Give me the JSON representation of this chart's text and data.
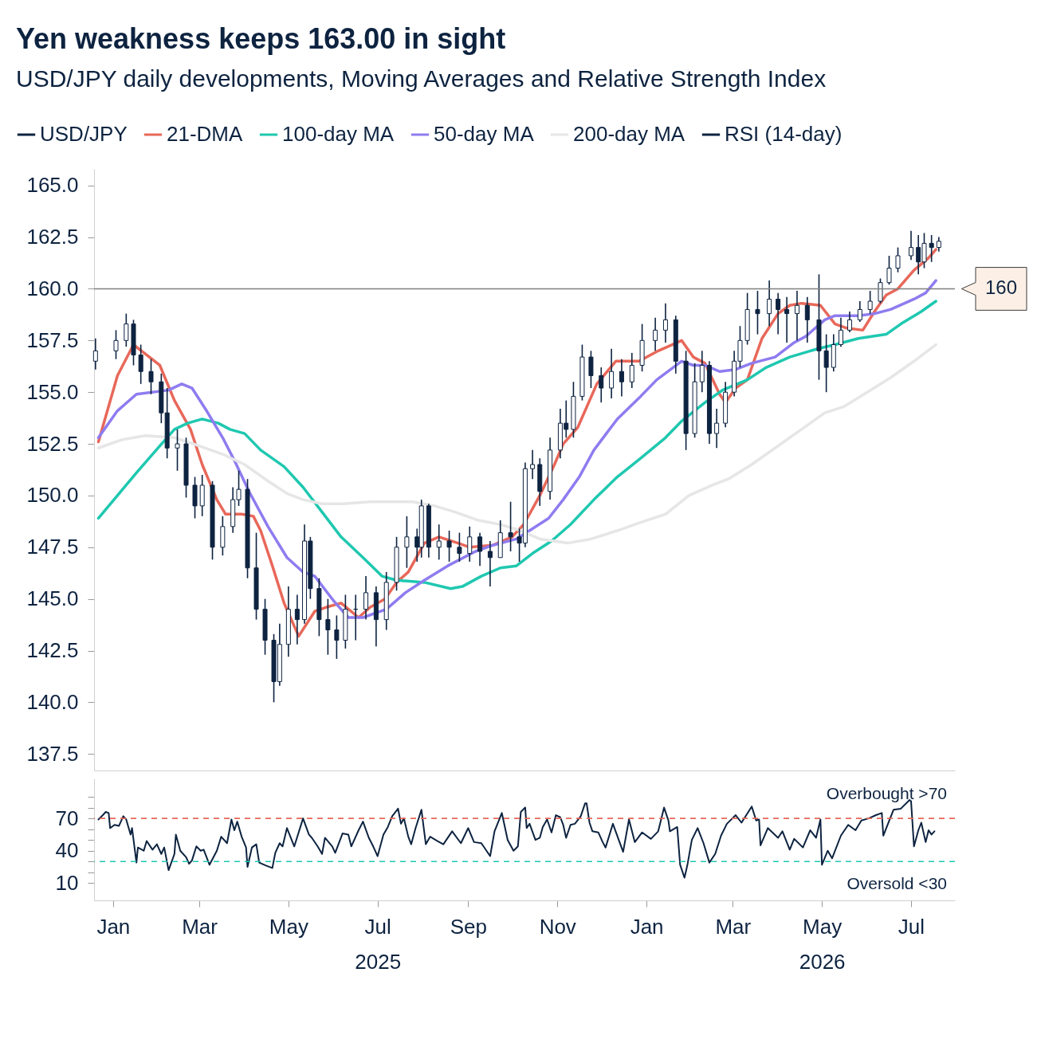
{
  "chart_data": [
    {
      "type": "candlestick",
      "title": "Yen weakness keeps 163.00 in sight",
      "subtitle": "USD/JPY daily developments, Moving Averages and Relative Strength Index",
      "xlim": [
        "2024-12-19",
        "2026-07-31"
      ],
      "ylim": [
        136.7,
        165.8
      ],
      "yticks": [
        137.5,
        {
          "value": 140,
          "label": "140.0"
        },
        142.5,
        {
          "value": 145,
          "label": "145.0"
        },
        147.5,
        {
          "value": 150,
          "label": "150.0"
        },
        152.5,
        {
          "value": 155,
          "label": "155.0"
        },
        157.5,
        {
          "value": 160,
          "label": "160.0"
        },
        162.5,
        {
          "value": 165,
          "label": "165.0"
        }
      ],
      "tick_labels": "y",
      "legend": "top",
      "ref_lines": [
        {
          "axis": "y",
          "value": 160,
          "label": "160",
          "color": "#808080",
          "line_style": "solid"
        }
      ],
      "series": [
        {
          "name": "USD/JPY",
          "type": "candlestick",
          "color": "#0d2340",
          "x": [
            "2024-12-20",
            "2025-01-03",
            "2025-01-10",
            "2025-01-15",
            "2025-01-20",
            "2025-01-27",
            "2025-02-03",
            "2025-02-07",
            "2025-02-14",
            "2025-02-20",
            "2025-02-26",
            "2025-03-03",
            "2025-03-10",
            "2025-03-17",
            "2025-03-24",
            "2025-03-28",
            "2025-04-03",
            "2025-04-09",
            "2025-04-15",
            "2025-04-21",
            "2025-04-25",
            "2025-05-01",
            "2025-05-07",
            "2025-05-12",
            "2025-05-16",
            "2025-05-22",
            "2025-05-28",
            "2025-06-03",
            "2025-06-09",
            "2025-06-16",
            "2025-06-23",
            "2025-06-30",
            "2025-07-07",
            "2025-07-14",
            "2025-07-21",
            "2025-07-28",
            "2025-07-31",
            "2025-08-05",
            "2025-08-12",
            "2025-08-19",
            "2025-08-26",
            "2025-09-02",
            "2025-09-09",
            "2025-09-16",
            "2025-09-23",
            "2025-09-30",
            "2025-10-06",
            "2025-10-10",
            "2025-10-15",
            "2025-10-20",
            "2025-10-27",
            "2025-11-03",
            "2025-11-07",
            "2025-11-12",
            "2025-11-18",
            "2025-11-24",
            "2025-12-01",
            "2025-12-08",
            "2025-12-15",
            "2025-12-22",
            "2025-12-29",
            "2026-01-07",
            "2026-01-14",
            "2026-01-21",
            "2026-01-28",
            "2026-02-03",
            "2026-02-08",
            "2026-02-13",
            "2026-02-18",
            "2026-02-24",
            "2026-03-02",
            "2026-03-06",
            "2026-03-11",
            "2026-03-18",
            "2026-03-26",
            "2026-04-01",
            "2026-04-07",
            "2026-04-14",
            "2026-04-21",
            "2026-04-29",
            "2026-05-04",
            "2026-05-09",
            "2026-05-14",
            "2026-05-20",
            "2026-05-27",
            "2026-06-03",
            "2026-06-10",
            "2026-06-16",
            "2026-06-22",
            "2026-07-01",
            "2026-07-06",
            "2026-07-10",
            "2026-07-15",
            "2026-07-20"
          ],
          "ohlc": [
            [
              156.5,
              157.6,
              156.1,
              157.0
            ],
            [
              157.0,
              158.0,
              156.6,
              157.5
            ],
            [
              157.5,
              158.8,
              157.2,
              158.3
            ],
            [
              158.3,
              158.5,
              156.3,
              156.8
            ],
            [
              156.8,
              157.3,
              155.4,
              156.0
            ],
            [
              156.0,
              156.6,
              154.9,
              155.5
            ],
            [
              155.5,
              155.9,
              153.5,
              154.0
            ],
            [
              154.0,
              155.2,
              151.8,
              152.3
            ],
            [
              152.3,
              153.2,
              151.2,
              152.5
            ],
            [
              152.5,
              152.8,
              149.9,
              150.5
            ],
            [
              150.5,
              150.9,
              148.9,
              149.5
            ],
            [
              149.5,
              151.0,
              149.0,
              150.5
            ],
            [
              150.5,
              150.7,
              146.9,
              147.5
            ],
            [
              147.5,
              149.0,
              147.1,
              148.5
            ],
            [
              148.5,
              150.4,
              148.2,
              149.8
            ],
            [
              149.8,
              151.2,
              149.5,
              150.3
            ],
            [
              150.3,
              150.8,
              146.0,
              146.5
            ],
            [
              146.5,
              148.2,
              144.0,
              144.5
            ],
            [
              144.5,
              145.0,
              142.3,
              143.0
            ],
            [
              143.0,
              143.3,
              140.0,
              141.0
            ],
            [
              141.0,
              143.8,
              140.8,
              142.8
            ],
            [
              142.8,
              145.6,
              142.2,
              144.5
            ],
            [
              144.5,
              145.2,
              142.8,
              144.0
            ],
            [
              144.0,
              148.6,
              143.8,
              147.8
            ],
            [
              147.8,
              148.0,
              145.0,
              145.5
            ],
            [
              145.5,
              146.0,
              143.2,
              144.0
            ],
            [
              144.0,
              145.0,
              142.3,
              143.5
            ],
            [
              143.5,
              144.2,
              142.1,
              143.0
            ],
            [
              143.0,
              145.2,
              142.6,
              144.5
            ],
            [
              144.5,
              145.2,
              143.0,
              144.5
            ],
            [
              144.5,
              146.1,
              144.0,
              145.3
            ],
            [
              145.3,
              145.6,
              142.7,
              144.0
            ],
            [
              144.0,
              146.3,
              143.5,
              145.8
            ],
            [
              145.8,
              148.0,
              145.4,
              147.5
            ],
            [
              147.5,
              149.0,
              146.5,
              148.0
            ],
            [
              148.0,
              148.4,
              146.8,
              147.5
            ],
            [
              147.5,
              149.8,
              147.0,
              149.5
            ],
            [
              149.5,
              149.6,
              147.0,
              147.5
            ],
            [
              147.5,
              148.6,
              146.9,
              147.8
            ],
            [
              147.8,
              148.3,
              146.8,
              147.5
            ],
            [
              147.5,
              148.2,
              146.8,
              147.2
            ],
            [
              147.2,
              148.5,
              146.8,
              148.0
            ],
            [
              148.0,
              148.2,
              146.6,
              147.3
            ],
            [
              147.3,
              147.8,
              145.6,
              147.0
            ],
            [
              147.0,
              148.8,
              147.0,
              148.2
            ],
            [
              148.2,
              149.7,
              147.3,
              148.0
            ],
            [
              148.0,
              148.4,
              146.8,
              147.7
            ],
            [
              147.7,
              151.6,
              147.5,
              151.3
            ],
            [
              151.3,
              152.2,
              150.8,
              151.5
            ],
            [
              151.5,
              151.8,
              149.5,
              150.2
            ],
            [
              150.2,
              152.8,
              149.8,
              152.2
            ],
            [
              152.2,
              154.2,
              151.8,
              153.5
            ],
            [
              153.5,
              154.6,
              152.8,
              153.2
            ],
            [
              153.2,
              155.5,
              152.8,
              154.8
            ],
            [
              154.8,
              157.3,
              154.6,
              156.7
            ],
            [
              156.7,
              157.0,
              155.2,
              155.8
            ],
            [
              155.8,
              156.2,
              154.5,
              155.2
            ],
            [
              155.2,
              157.1,
              154.7,
              156.0
            ],
            [
              156.0,
              156.6,
              154.8,
              155.5
            ],
            [
              155.5,
              156.9,
              155.2,
              156.3
            ],
            [
              156.3,
              158.3,
              156.0,
              157.5
            ],
            [
              157.5,
              158.6,
              157.0,
              158.0
            ],
            [
              158.0,
              159.3,
              157.4,
              158.5
            ],
            [
              158.5,
              158.7,
              155.9,
              156.5
            ],
            [
              156.5,
              157.0,
              152.2,
              153.0
            ],
            [
              153.0,
              156.4,
              152.8,
              155.5
            ],
            [
              155.5,
              157.0,
              155.0,
              156.3
            ],
            [
              156.3,
              156.5,
              152.5,
              153.0
            ],
            [
              153.0,
              154.2,
              152.3,
              153.5
            ],
            [
              153.5,
              155.5,
              153.3,
              155.0
            ],
            [
              155.0,
              157.0,
              154.8,
              156.5
            ],
            [
              156.5,
              158.2,
              156.2,
              157.5
            ],
            [
              157.5,
              159.8,
              157.3,
              159.0
            ],
            [
              159.0,
              159.9,
              157.8,
              158.8
            ],
            [
              158.8,
              160.4,
              158.2,
              159.5
            ],
            [
              159.5,
              159.8,
              157.8,
              159.0
            ],
            [
              159.0,
              159.6,
              157.4,
              158.8
            ],
            [
              158.8,
              159.9,
              157.5,
              159.2
            ],
            [
              159.2,
              159.6,
              157.4,
              158.5
            ],
            [
              158.5,
              160.7,
              155.6,
              157.0
            ],
            [
              157.0,
              157.8,
              155.0,
              156.2
            ],
            [
              156.2,
              157.8,
              156.0,
              157.3
            ],
            [
              157.3,
              158.6,
              157.2,
              158.0
            ],
            [
              158.0,
              158.9,
              157.9,
              158.5
            ],
            [
              158.5,
              159.4,
              158.4,
              159.0
            ],
            [
              159.0,
              159.9,
              158.8,
              159.4
            ],
            [
              159.4,
              160.5,
              159.3,
              160.3
            ],
            [
              160.3,
              161.6,
              160.2,
              161.0
            ],
            [
              161.0,
              162.0,
              160.8,
              161.6
            ],
            [
              161.6,
              162.8,
              161.4,
              162.0
            ],
            [
              162.0,
              162.6,
              160.7,
              161.3
            ],
            [
              161.3,
              162.7,
              161.0,
              162.2
            ],
            [
              162.2,
              162.6,
              161.3,
              162.0
            ],
            [
              162.0,
              162.5,
              161.8,
              162.3
            ]
          ]
        },
        {
          "name": "21-DMA",
          "type": "line",
          "color": "#e8685a",
          "x": [
            "2024-12-22",
            "2025-01-04",
            "2025-01-15",
            "2025-02-02",
            "2025-02-12",
            "2025-02-23",
            "2025-03-03",
            "2025-03-13",
            "2025-03-19",
            "2025-03-30",
            "2025-04-07",
            "2025-04-12",
            "2025-04-20",
            "2025-04-28",
            "2025-05-08",
            "2025-05-19",
            "2025-05-27",
            "2025-06-06",
            "2025-06-18",
            "2025-06-26",
            "2025-07-06",
            "2025-07-14",
            "2025-07-22",
            "2025-08-02",
            "2025-08-12",
            "2025-08-25",
            "2025-09-02",
            "2025-09-18",
            "2025-10-01",
            "2025-10-09",
            "2025-10-20",
            "2025-10-30",
            "2025-11-05",
            "2025-11-15",
            "2025-11-28",
            "2025-12-11",
            "2025-12-27",
            "2026-01-09",
            "2026-01-25",
            "2026-02-02",
            "2026-02-10",
            "2026-02-20",
            "2026-02-24",
            "2026-03-03",
            "2026-03-11",
            "2026-03-21",
            "2026-04-01",
            "2026-04-09",
            "2026-04-17",
            "2026-04-30",
            "2026-05-10",
            "2026-05-18",
            "2026-05-29",
            "2026-06-06",
            "2026-06-14",
            "2026-06-22",
            "2026-07-03",
            "2026-07-13",
            "2026-07-18"
          ],
          "values": [
            152.6,
            155.8,
            157.3,
            156.3,
            154.6,
            153.2,
            151.5,
            149.8,
            149.1,
            149.1,
            149.0,
            148.3,
            146.6,
            144.8,
            143.2,
            144.4,
            144.6,
            144.8,
            144.1,
            144.6,
            145.0,
            145.8,
            146.3,
            147.7,
            148.0,
            147.7,
            147.5,
            147.6,
            148.0,
            148.6,
            150.0,
            151.5,
            152.5,
            153.3,
            155.4,
            156.5,
            156.5,
            157.0,
            157.5,
            156.7,
            156.4,
            154.9,
            154.5,
            155.2,
            155.6,
            157.6,
            158.8,
            159.2,
            159.3,
            159.2,
            158.3,
            158.1,
            158.0,
            158.9,
            159.7,
            160.0,
            160.9,
            161.5,
            161.9
          ]
        },
        {
          "name": "100-day MA",
          "type": "line",
          "color": "#1fc8b0",
          "x": [
            "2024-12-22",
            "2025-01-04",
            "2025-01-17",
            "2025-02-02",
            "2025-02-12",
            "2025-02-21",
            "2025-03-03",
            "2025-03-14",
            "2025-03-22",
            "2025-04-01",
            "2025-04-12",
            "2025-04-28",
            "2025-05-11",
            "2025-05-24",
            "2025-06-06",
            "2025-06-21",
            "2025-07-04",
            "2025-07-14",
            "2025-08-02",
            "2025-08-20",
            "2025-08-28",
            "2025-09-10",
            "2025-09-23",
            "2025-10-04",
            "2025-10-15",
            "2025-10-28",
            "2025-11-10",
            "2025-11-26",
            "2025-12-12",
            "2025-12-28",
            "2026-01-14",
            "2026-01-25",
            "2026-02-10",
            "2026-02-22",
            "2026-03-11",
            "2026-03-24",
            "2026-04-09",
            "2026-04-28",
            "2026-05-10",
            "2026-05-26",
            "2026-06-14",
            "2026-06-24",
            "2026-07-08",
            "2026-07-18"
          ],
          "values": [
            148.9,
            150.0,
            151.1,
            152.4,
            153.2,
            153.5,
            153.7,
            153.5,
            153.2,
            153.0,
            152.2,
            151.4,
            150.4,
            149.2,
            148.0,
            147.0,
            146.1,
            145.9,
            145.8,
            145.5,
            145.6,
            146.1,
            146.5,
            146.6,
            147.2,
            147.8,
            148.6,
            149.8,
            150.9,
            151.8,
            152.8,
            153.6,
            154.5,
            155.1,
            155.6,
            156.2,
            156.7,
            157.1,
            157.3,
            157.6,
            157.8,
            158.3,
            158.9,
            159.4
          ]
        },
        {
          "name": "50-day MA",
          "type": "line",
          "color": "#8e7cf0",
          "x": [
            "2024-12-22",
            "2025-01-04",
            "2025-01-17",
            "2025-02-08",
            "2025-02-17",
            "2025-02-24",
            "2025-03-06",
            "2025-03-17",
            "2025-03-25",
            "2025-04-04",
            "2025-04-17",
            "2025-04-30",
            "2025-05-11",
            "2025-05-19",
            "2025-06-01",
            "2025-06-11",
            "2025-06-21",
            "2025-07-07",
            "2025-07-20",
            "2025-08-02",
            "2025-08-18",
            "2025-09-06",
            "2025-09-18",
            "2025-10-04",
            "2025-10-15",
            "2025-10-26",
            "2025-11-05",
            "2025-11-16",
            "2025-11-26",
            "2025-12-12",
            "2025-12-28",
            "2026-01-08",
            "2026-01-25",
            "2026-02-02",
            "2026-02-10",
            "2026-02-20",
            "2026-03-03",
            "2026-03-14",
            "2026-03-30",
            "2026-04-12",
            "2026-04-20",
            "2026-05-03",
            "2026-05-10",
            "2026-05-26",
            "2026-06-06",
            "2026-06-17",
            "2026-07-03",
            "2026-07-11",
            "2026-07-18"
          ],
          "values": [
            152.8,
            154.1,
            154.9,
            155.1,
            155.4,
            155.2,
            154.1,
            152.8,
            151.7,
            150.2,
            148.5,
            147.0,
            146.3,
            146.1,
            144.9,
            144.1,
            144.1,
            144.5,
            145.3,
            145.9,
            146.6,
            147.3,
            147.6,
            147.9,
            148.4,
            148.9,
            149.8,
            150.9,
            152.2,
            153.7,
            154.8,
            155.6,
            156.5,
            156.3,
            156.3,
            156.0,
            156.1,
            156.4,
            156.7,
            157.4,
            157.7,
            158.5,
            158.7,
            158.7,
            158.8,
            159.0,
            159.5,
            159.8,
            160.4
          ]
        },
        {
          "name": "200-day MA",
          "type": "line",
          "color": "#e6e6e6",
          "x": [
            "2024-12-22",
            "2025-01-07",
            "2025-01-23",
            "2025-02-12",
            "2025-03-01",
            "2025-03-17",
            "2025-04-01",
            "2025-04-17",
            "2025-04-30",
            "2025-05-11",
            "2025-05-24",
            "2025-06-08",
            "2025-06-26",
            "2025-07-11",
            "2025-07-25",
            "2025-08-09",
            "2025-08-23",
            "2025-09-08",
            "2025-09-23",
            "2025-10-07",
            "2025-10-20",
            "2025-11-08",
            "2025-11-24",
            "2025-12-12",
            "2025-12-28",
            "2026-01-14",
            "2026-01-30",
            "2026-02-15",
            "2026-02-26",
            "2026-03-14",
            "2026-03-30",
            "2026-04-17",
            "2026-05-03",
            "2026-05-16",
            "2026-06-01",
            "2026-06-17",
            "2026-07-03",
            "2026-07-18"
          ],
          "values": [
            152.3,
            152.7,
            152.9,
            152.8,
            152.4,
            152.0,
            151.5,
            150.7,
            150.1,
            149.8,
            149.6,
            149.6,
            149.7,
            149.7,
            149.7,
            149.5,
            149.2,
            148.8,
            148.6,
            148.3,
            147.9,
            147.7,
            147.9,
            148.3,
            148.7,
            149.1,
            150.0,
            150.5,
            150.8,
            151.5,
            152.3,
            153.2,
            154.0,
            154.3,
            155.0,
            155.7,
            156.5,
            157.3
          ]
        }
      ]
    },
    {
      "type": "line",
      "xlim": [
        "2024-12-19",
        "2026-07-31"
      ],
      "ylim": [
        -6,
        107
      ],
      "xticks": [
        {
          "value": "2025-01-01",
          "label": "Jan"
        },
        {
          "value": "2025-03-01",
          "label": "Mar"
        },
        {
          "value": "2025-05-01",
          "label": "May"
        },
        {
          "value": "2025-07-01",
          "label": "Jul\n2025"
        },
        {
          "value": "2025-09-01",
          "label": "Sep"
        },
        {
          "value": "2025-11-01",
          "label": "Nov"
        },
        {
          "value": "2026-01-01",
          "label": "Jan"
        },
        {
          "value": "2026-03-01",
          "label": "Mar"
        },
        {
          "value": "2026-05-01",
          "label": "May\n2026"
        },
        {
          "value": "2026-07-01",
          "label": "Jul"
        }
      ],
      "yticks": [
        10,
        {
          "value": 20,
          "label": null
        },
        {
          "value": 30,
          "label": null
        },
        40,
        {
          "value": 50,
          "label": null
        },
        {
          "value": 60,
          "label": null
        },
        70,
        {
          "value": 80,
          "label": null
        },
        {
          "value": 90,
          "label": null
        }
      ],
      "ref_lines": [
        {
          "axis": "y",
          "value": 70,
          "label": "Overbought >70",
          "color": "#e8685a",
          "line_style": "dashed"
        },
        {
          "axis": "y",
          "value": 30,
          "label": "Oversold <30",
          "color": "#1fc8b0",
          "line_style": "dashed"
        }
      ],
      "series": [
        {
          "name": "RSI (14-day)",
          "color": "#0d2340",
          "x": [
            "2024-12-22",
            "2024-12-25",
            "2024-12-27",
            "2024-12-29",
            "2024-12-30",
            "2025-01-02",
            "2025-01-05",
            "2025-01-08",
            "2025-01-10",
            "2025-01-13",
            "2025-01-14",
            "2025-01-17",
            "2025-01-18",
            "2025-01-22",
            "2025-01-24",
            "2025-01-28",
            "2025-01-31",
            "2025-02-03",
            "2025-02-05",
            "2025-02-08",
            "2025-02-12",
            "2025-02-13",
            "2025-02-16",
            "2025-02-20",
            "2025-02-22",
            "2025-02-24",
            "2025-02-27",
            "2025-03-02",
            "2025-03-04",
            "2025-03-08",
            "2025-03-13",
            "2025-03-16",
            "2025-03-20",
            "2025-03-23",
            "2025-03-25",
            "2025-03-27",
            "2025-03-30",
            "2025-04-02",
            "2025-04-03",
            "2025-04-06",
            "2025-04-09",
            "2025-04-11",
            "2025-04-16",
            "2025-04-20",
            "2025-04-22",
            "2025-04-25",
            "2025-04-27",
            "2025-04-30",
            "2025-05-05",
            "2025-05-11",
            "2025-05-15",
            "2025-05-17",
            "2025-05-21",
            "2025-05-24",
            "2025-05-26",
            "2025-05-31",
            "2025-06-02",
            "2025-06-07",
            "2025-06-11",
            "2025-06-13",
            "2025-06-18",
            "2025-06-21",
            "2025-06-25",
            "2025-06-28",
            "2025-07-01",
            "2025-07-05",
            "2025-07-08",
            "2025-07-11",
            "2025-07-15",
            "2025-07-17",
            "2025-07-19",
            "2025-07-22",
            "2025-07-24",
            "2025-07-27",
            "2025-07-31",
            "2025-08-03",
            "2025-08-06",
            "2025-08-11",
            "2025-08-15",
            "2025-08-21",
            "2025-08-27",
            "2025-09-01",
            "2025-09-05",
            "2025-09-10",
            "2025-09-16",
            "2025-09-19",
            "2025-09-24",
            "2025-09-28",
            "2025-10-02",
            "2025-10-05",
            "2025-10-07",
            "2025-10-10",
            "2025-10-11",
            "2025-10-13",
            "2025-10-17",
            "2025-10-20",
            "2025-10-22",
            "2025-10-25",
            "2025-10-28",
            "2025-10-31",
            "2025-11-03",
            "2025-11-05",
            "2025-11-07",
            "2025-11-10",
            "2025-11-13",
            "2025-11-17",
            "2025-11-20",
            "2025-11-21",
            "2025-11-23",
            "2025-11-25",
            "2025-11-29",
            "2025-12-02",
            "2025-12-04",
            "2025-12-09",
            "2025-12-13",
            "2025-12-16",
            "2025-12-20",
            "2025-12-24",
            "2025-12-29",
            "2026-01-04",
            "2026-01-09",
            "2026-01-13",
            "2026-01-16",
            "2026-01-17",
            "2026-01-22",
            "2026-01-24",
            "2026-01-27",
            "2026-01-29",
            "2026-02-01",
            "2026-02-05",
            "2026-02-09",
            "2026-02-13",
            "2026-02-17",
            "2026-02-21",
            "2026-02-25",
            "2026-03-03",
            "2026-03-07",
            "2026-03-14",
            "2026-03-17",
            "2026-03-19",
            "2026-03-20",
            "2026-03-25",
            "2026-04-01",
            "2026-04-04",
            "2026-04-09",
            "2026-04-12",
            "2026-04-18",
            "2026-04-23",
            "2026-04-27",
            "2026-04-30",
            "2026-05-01",
            "2026-05-05",
            "2026-05-08",
            "2026-05-14",
            "2026-05-19",
            "2026-05-24",
            "2026-05-28",
            "2026-06-02",
            "2026-06-07",
            "2026-06-11",
            "2026-06-12",
            "2026-06-19",
            "2026-06-24",
            "2026-06-30",
            "2026-07-01",
            "2026-07-03",
            "2026-07-06",
            "2026-07-08",
            "2026-07-11",
            "2026-07-13",
            "2026-07-15",
            "2026-07-17"
          ],
          "values": [
            69,
            73,
            76,
            75,
            61,
            64,
            63,
            72,
            69,
            55,
            61,
            29,
            43,
            40,
            49,
            41,
            46,
            37,
            43,
            22,
            37,
            55,
            40,
            34,
            28,
            31,
            44,
            40,
            41,
            27,
            40,
            53,
            47,
            69,
            59,
            67,
            53,
            43,
            25,
            43,
            46,
            29,
            26,
            24,
            38,
            47,
            44,
            61,
            44,
            70,
            55,
            52,
            44,
            37,
            52,
            44,
            38,
            56,
            55,
            44,
            59,
            67,
            52,
            44,
            35,
            55,
            62,
            72,
            79,
            65,
            70,
            53,
            46,
            61,
            78,
            46,
            53,
            49,
            46,
            58,
            47,
            61,
            48,
            47,
            35,
            58,
            75,
            50,
            40,
            44,
            76,
            80,
            61,
            65,
            50,
            52,
            62,
            69,
            57,
            73,
            71,
            64,
            52,
            64,
            65,
            72,
            84,
            84,
            66,
            58,
            57,
            48,
            43,
            65,
            50,
            39,
            69,
            48,
            57,
            51,
            58,
            80,
            68,
            58,
            62,
            27,
            15,
            27,
            50,
            61,
            47,
            29,
            37,
            54,
            65,
            73,
            66,
            81,
            68,
            69,
            45,
            61,
            52,
            58,
            41,
            51,
            43,
            59,
            52,
            69,
            27,
            40,
            33,
            54,
            64,
            59,
            68,
            70,
            73,
            75,
            54,
            78,
            79,
            87,
            86,
            44,
            59,
            66,
            48,
            59,
            55,
            58
          ]
        }
      ]
    }
  ]
}
